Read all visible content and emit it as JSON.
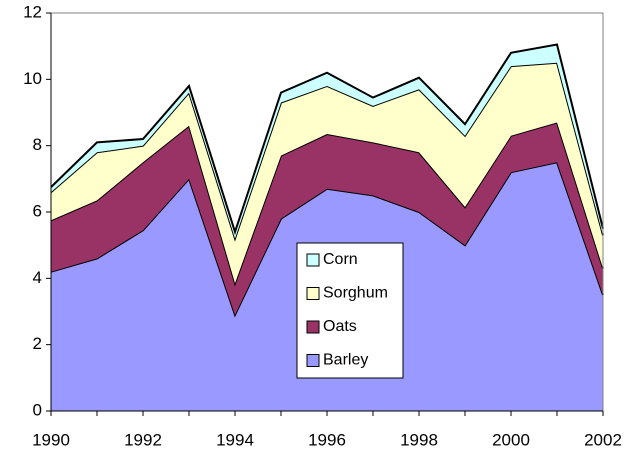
{
  "chart_data": {
    "type": "stacked_area",
    "x": [
      1990,
      1991,
      1992,
      1993,
      1994,
      1995,
      1996,
      1997,
      1998,
      1999,
      2000,
      2001,
      2002
    ],
    "series": [
      {
        "name": "Barley",
        "color": "#9999ff",
        "values": [
          4.2,
          4.6,
          5.45,
          7.0,
          2.9,
          5.8,
          6.7,
          6.5,
          6.0,
          5.0,
          7.2,
          7.5,
          3.5
        ]
      },
      {
        "name": "Oats",
        "color": "#993366",
        "values": [
          1.55,
          1.75,
          2.05,
          1.6,
          0.95,
          1.9,
          1.65,
          1.6,
          1.8,
          1.15,
          1.1,
          1.2,
          0.8
        ]
      },
      {
        "name": "Sorghum",
        "color": "#ffffcc",
        "values": [
          0.85,
          1.45,
          0.5,
          1.0,
          1.35,
          1.6,
          1.45,
          1.1,
          1.9,
          2.15,
          2.1,
          1.8,
          1.0
        ]
      },
      {
        "name": "Corn",
        "color": "#ccffff",
        "values": [
          0.15,
          0.3,
          0.2,
          0.2,
          0.2,
          0.3,
          0.4,
          0.25,
          0.35,
          0.35,
          0.4,
          0.55,
          0.2
        ]
      }
    ],
    "xlim": [
      1990,
      2002
    ],
    "xticks": [
      1990,
      1992,
      1994,
      1996,
      1998,
      2000,
      2002
    ],
    "ylim": [
      0,
      12
    ],
    "yticks": [
      0,
      2,
      4,
      6,
      8,
      10,
      12
    ]
  }
}
